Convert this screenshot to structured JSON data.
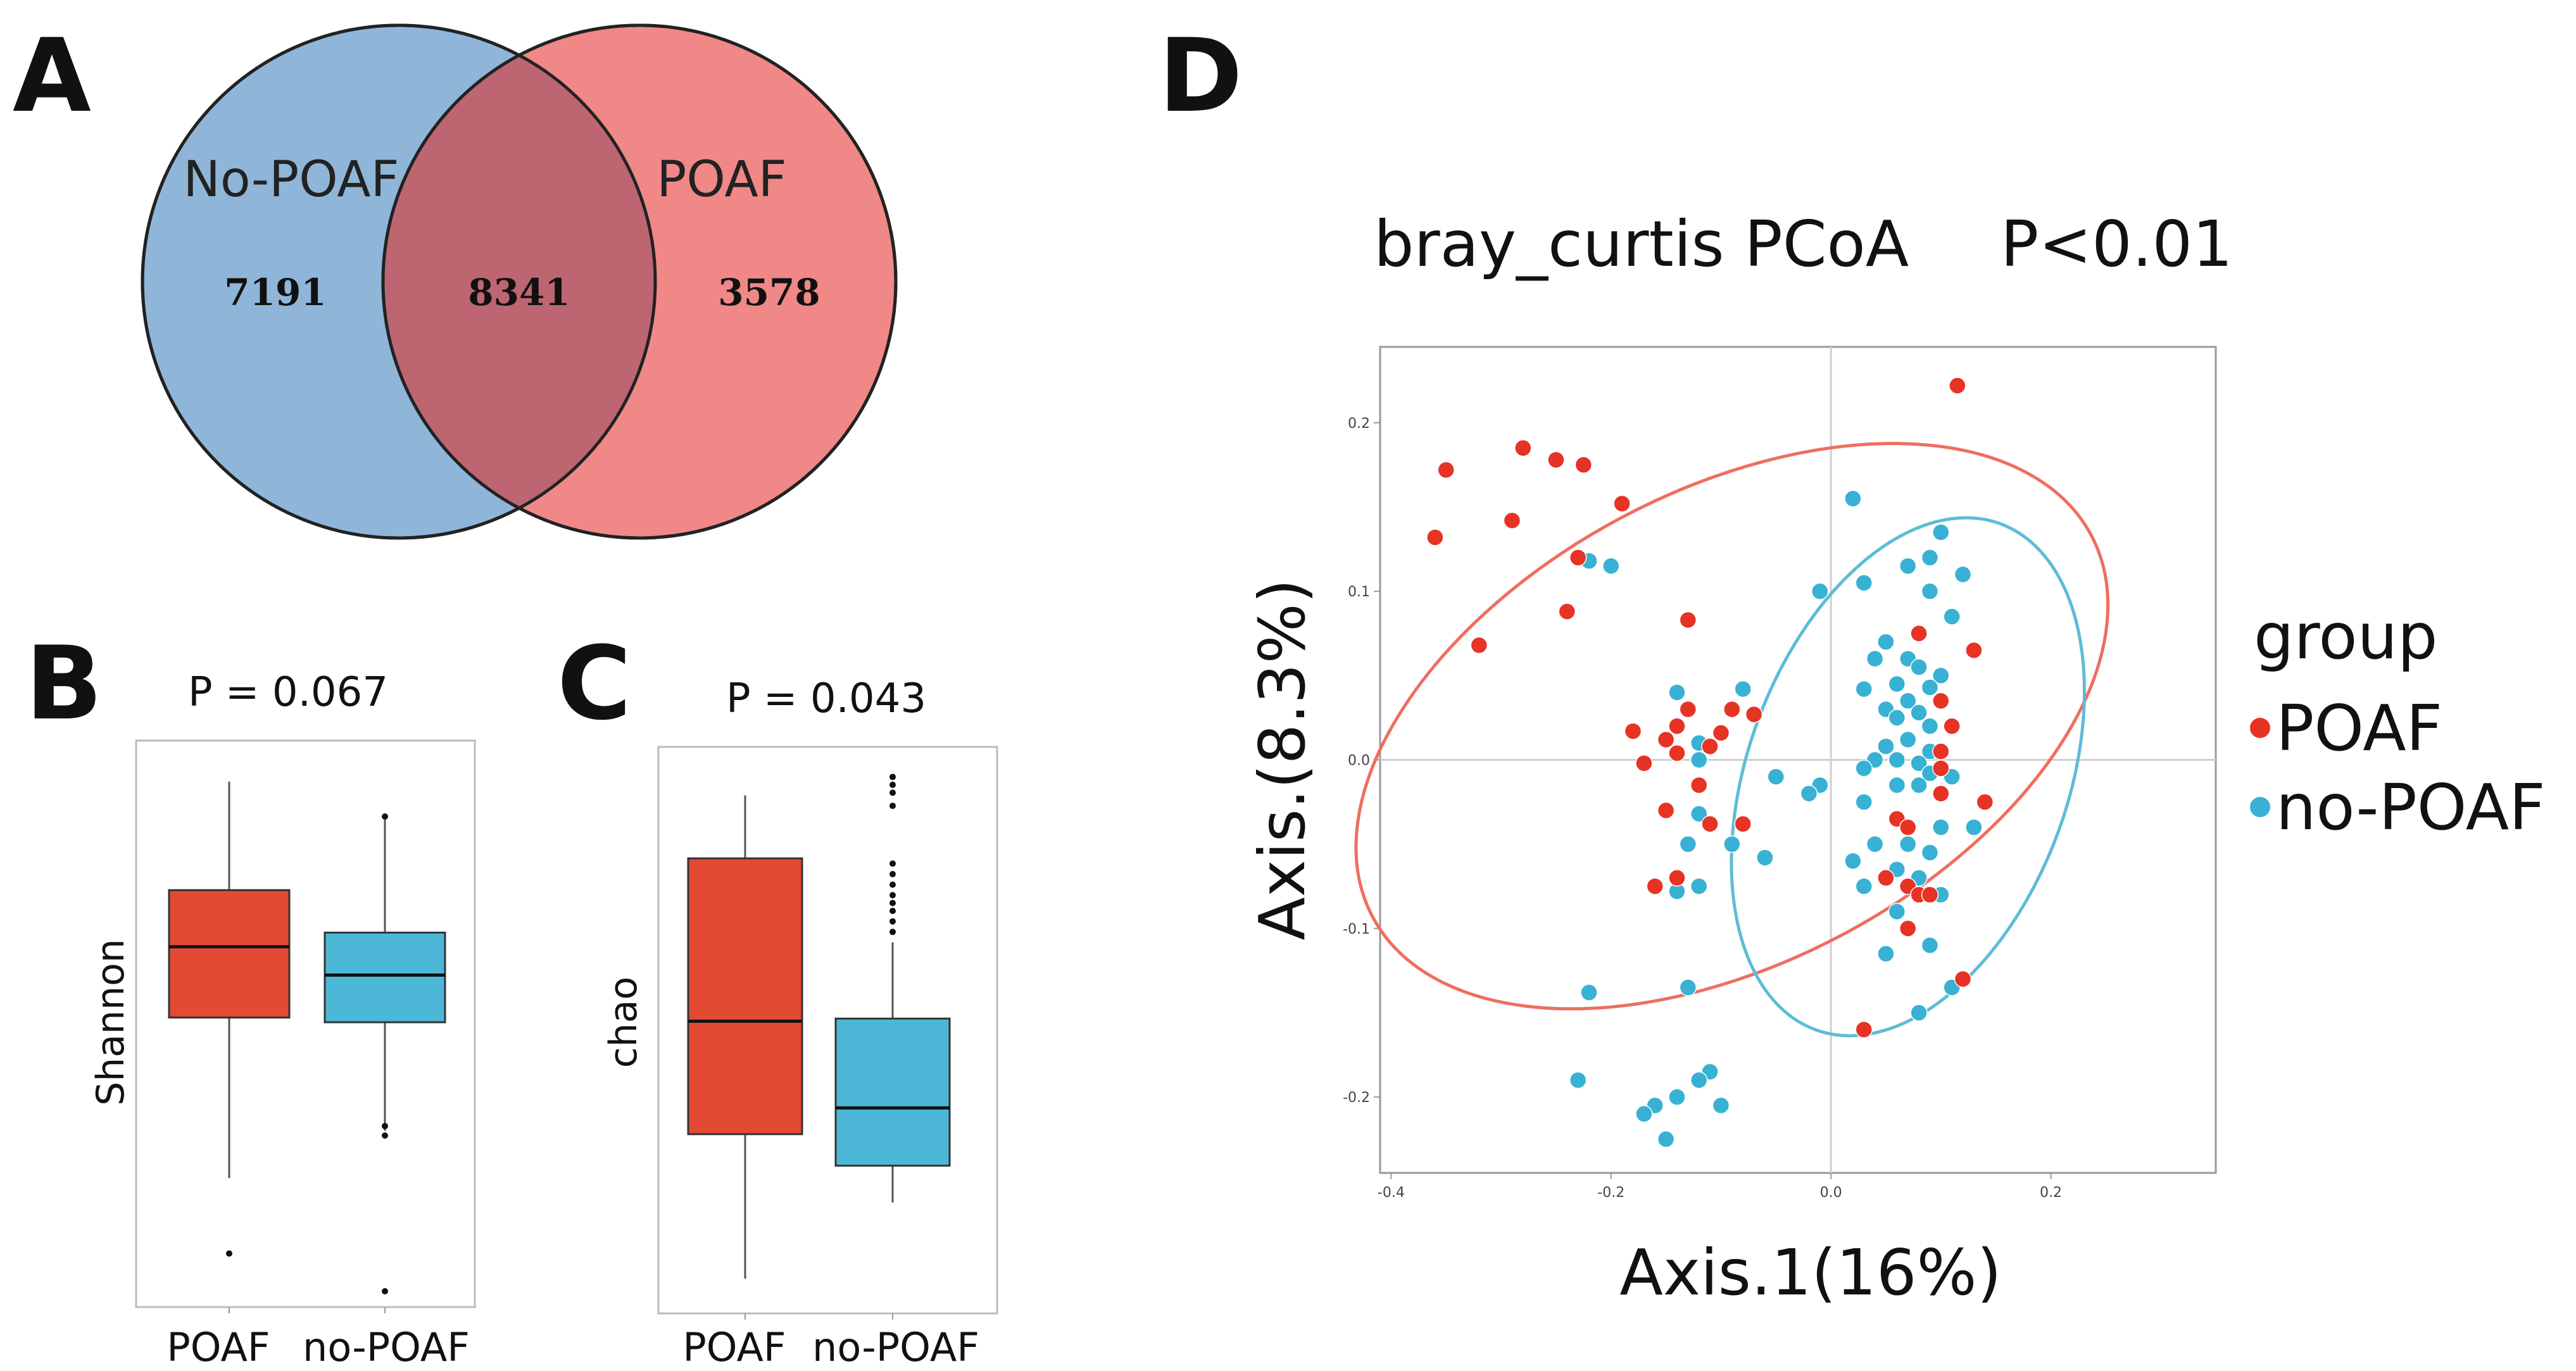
{
  "colors": {
    "noPOAF_circle": "#8fb6d9",
    "POAF_circle": "#f08888",
    "intersection": "#bd6672",
    "box_red": "#e24a33",
    "box_blue": "#4cb7d6",
    "pt_red": "#e63324",
    "pt_blue": "#38b1d4",
    "ell_red": "#ef6e5f",
    "ell_blue": "#5dbcd7"
  },
  "panels": {
    "A": {
      "letter": "A",
      "label_left": "No-POAF",
      "label_right": "POAF",
      "count_left": "7191",
      "count_shared": "8341",
      "count_right": "3578"
    },
    "B": {
      "letter": "B",
      "pvalue": "P = 0.067",
      "ylabel": "Shannon",
      "categories": [
        "POAF",
        "no-POAF"
      ]
    },
    "C": {
      "letter": "C",
      "pvalue": "P = 0.043",
      "ylabel": "chao",
      "categories": [
        "POAF",
        "no-POAF"
      ]
    },
    "D": {
      "letter": "D",
      "title": "bray_curtis PCoA",
      "pvalue": "P<0.01",
      "xlabel": "Axis.1(16%)",
      "ylabel": "Axis.(8.3%)",
      "legend_title": "group",
      "legend_items": [
        "POAF",
        "no-POAF"
      ]
    }
  },
  "chart_data": [
    {
      "type": "venn",
      "sets": [
        "No-POAF",
        "POAF"
      ],
      "values": {
        "No-POAF only": 7191,
        "shared": 8341,
        "POAF only": 3578
      }
    },
    {
      "type": "box",
      "title": "P = 0.067",
      "ylabel": "Shannon",
      "xlabel": "",
      "categories": [
        "POAF",
        "no-POAF"
      ],
      "ylim": [
        2.0,
        7.6
      ],
      "series": [
        {
          "name": "POAF",
          "min": 3.2,
          "q1": 4.9,
          "median": 5.65,
          "q3": 6.25,
          "max": 7.4,
          "outliers": [
            2.4
          ]
        },
        {
          "name": "no-POAF",
          "min": 3.7,
          "q1": 4.85,
          "median": 5.35,
          "q3": 5.8,
          "max": 7.0,
          "outliers": [
            7.03,
            3.75,
            3.65,
            2.0
          ]
        }
      ]
    },
    {
      "type": "box",
      "title": "P = 0.043",
      "ylabel": "chao",
      "xlabel": "",
      "categories": [
        "POAF",
        "no-POAF"
      ],
      "ylim": [
        0,
        1000
      ],
      "series": [
        {
          "name": "POAF",
          "min": 30,
          "q1": 305,
          "median": 520,
          "q3": 830,
          "max": 950,
          "outliers": []
        },
        {
          "name": "no-POAF",
          "min": 175,
          "q1": 245,
          "median": 355,
          "q3": 525,
          "max": 670,
          "outliers": [
            690,
            710,
            730,
            745,
            760,
            780,
            800,
            820,
            930,
            955,
            970,
            985
          ]
        }
      ]
    },
    {
      "type": "scatter",
      "title": "bray_curtis PCoA",
      "subtitle": "P<0.01",
      "xlabel": "Axis.1(16%)",
      "ylabel": "Axis.(8.3%)",
      "xlim": [
        -0.41,
        0.35
      ],
      "ylim": [
        -0.245,
        0.245
      ],
      "xticks": [
        -0.4,
        -0.2,
        0.0,
        0.2
      ],
      "xtick_labels": [
        "-0.4",
        "-0.2",
        "0.0",
        "0.2"
      ],
      "yticks": [
        0.2,
        0.1,
        0.0,
        -0.1,
        -0.2
      ],
      "ytick_labels": [
        "0.2",
        "0.1",
        "0.0",
        "-0.1",
        "-0.2"
      ],
      "legend": {
        "title": "group",
        "entries": [
          "POAF",
          "no-POAF"
        ],
        "position": "right"
      },
      "ellipses": [
        {
          "group": "POAF",
          "cx": -0.09,
          "cy": 0.02,
          "rx": 0.37,
          "ry": 0.14,
          "angle_deg": -28
        },
        {
          "group": "no-POAF",
          "cx": 0.07,
          "cy": -0.01,
          "rx": 0.245,
          "ry": 0.095,
          "angle_deg": 110
        }
      ],
      "series": [
        {
          "name": "POAF",
          "points": [
            [
              0.115,
              0.222
            ],
            [
              -0.35,
              0.172
            ],
            [
              -0.28,
              0.185
            ],
            [
              -0.25,
              0.178
            ],
            [
              -0.225,
              0.175
            ],
            [
              -0.36,
              0.132
            ],
            [
              -0.29,
              0.142
            ],
            [
              -0.19,
              0.152
            ],
            [
              -0.23,
              0.12
            ],
            [
              -0.32,
              0.068
            ],
            [
              -0.24,
              0.088
            ],
            [
              -0.13,
              0.083
            ],
            [
              -0.13,
              0.03
            ],
            [
              -0.09,
              0.03
            ],
            [
              -0.07,
              0.027
            ],
            [
              -0.18,
              0.017
            ],
            [
              -0.14,
              0.02
            ],
            [
              -0.15,
              0.012
            ],
            [
              -0.1,
              0.016
            ],
            [
              -0.14,
              0.004
            ],
            [
              -0.17,
              -0.002
            ],
            [
              -0.11,
              0.008
            ],
            [
              -0.12,
              -0.015
            ],
            [
              -0.11,
              -0.038
            ],
            [
              -0.15,
              -0.03
            ],
            [
              -0.08,
              -0.038
            ],
            [
              -0.14,
              -0.07
            ],
            [
              -0.16,
              -0.075
            ],
            [
              0.1,
              0.035
            ],
            [
              0.13,
              0.065
            ],
            [
              0.08,
              0.075
            ],
            [
              0.1,
              0.005
            ],
            [
              0.11,
              0.02
            ],
            [
              0.1,
              -0.02
            ],
            [
              0.14,
              -0.025
            ],
            [
              0.1,
              -0.005
            ],
            [
              0.06,
              -0.035
            ],
            [
              0.07,
              -0.04
            ],
            [
              0.05,
              -0.07
            ],
            [
              0.07,
              -0.075
            ],
            [
              0.08,
              -0.08
            ],
            [
              0.07,
              -0.1
            ],
            [
              0.12,
              -0.13
            ],
            [
              0.03,
              -0.16
            ],
            [
              0.09,
              -0.08
            ]
          ]
        },
        {
          "name": "no-POAF",
          "points": [
            [
              0.02,
              0.155
            ],
            [
              0.1,
              0.135
            ],
            [
              0.12,
              0.11
            ],
            [
              0.09,
              0.12
            ],
            [
              0.07,
              0.115
            ],
            [
              0.03,
              0.105
            ],
            [
              -0.22,
              0.118
            ],
            [
              -0.2,
              0.115
            ],
            [
              -0.01,
              0.1
            ],
            [
              0.09,
              0.1
            ],
            [
              0.11,
              0.085
            ],
            [
              0.05,
              0.07
            ],
            [
              0.07,
              0.06
            ],
            [
              0.04,
              0.06
            ],
            [
              0.08,
              0.055
            ],
            [
              0.1,
              0.05
            ],
            [
              0.06,
              0.045
            ],
            [
              0.09,
              0.043
            ],
            [
              0.03,
              0.042
            ],
            [
              -0.14,
              0.04
            ],
            [
              -0.08,
              0.042
            ],
            [
              0.07,
              0.035
            ],
            [
              0.05,
              0.03
            ],
            [
              0.08,
              0.028
            ],
            [
              0.06,
              0.025
            ],
            [
              0.09,
              0.02
            ],
            [
              0.07,
              0.012
            ],
            [
              0.05,
              0.008
            ],
            [
              0.09,
              0.005
            ],
            [
              0.06,
              0.0
            ],
            [
              0.04,
              0.0
            ],
            [
              0.08,
              -0.002
            ],
            [
              -0.12,
              0.01
            ],
            [
              -0.12,
              0.0
            ],
            [
              -0.05,
              -0.01
            ],
            [
              0.03,
              -0.005
            ],
            [
              0.09,
              -0.008
            ],
            [
              0.11,
              -0.01
            ],
            [
              -0.01,
              -0.015
            ],
            [
              -0.02,
              -0.02
            ],
            [
              0.06,
              -0.015
            ],
            [
              0.08,
              -0.015
            ],
            [
              0.03,
              -0.025
            ],
            [
              0.1,
              -0.04
            ],
            [
              0.13,
              -0.04
            ],
            [
              0.04,
              -0.05
            ],
            [
              0.07,
              -0.05
            ],
            [
              0.09,
              -0.055
            ],
            [
              0.02,
              -0.06
            ],
            [
              0.06,
              -0.065
            ],
            [
              0.08,
              -0.07
            ],
            [
              0.03,
              -0.075
            ],
            [
              0.1,
              -0.08
            ],
            [
              -0.12,
              -0.032
            ],
            [
              -0.13,
              -0.05
            ],
            [
              -0.09,
              -0.05
            ],
            [
              -0.06,
              -0.058
            ],
            [
              -0.14,
              -0.078
            ],
            [
              -0.12,
              -0.075
            ],
            [
              0.06,
              -0.09
            ],
            [
              0.09,
              -0.11
            ],
            [
              0.05,
              -0.115
            ],
            [
              -0.22,
              -0.138
            ],
            [
              -0.13,
              -0.135
            ],
            [
              -0.11,
              -0.185
            ],
            [
              -0.12,
              -0.19
            ],
            [
              -0.14,
              -0.2
            ],
            [
              -0.16,
              -0.205
            ],
            [
              -0.17,
              -0.21
            ],
            [
              -0.1,
              -0.205
            ],
            [
              -0.23,
              -0.19
            ],
            [
              -0.15,
              -0.225
            ],
            [
              0.11,
              -0.135
            ],
            [
              0.08,
              -0.15
            ]
          ]
        }
      ]
    }
  ]
}
